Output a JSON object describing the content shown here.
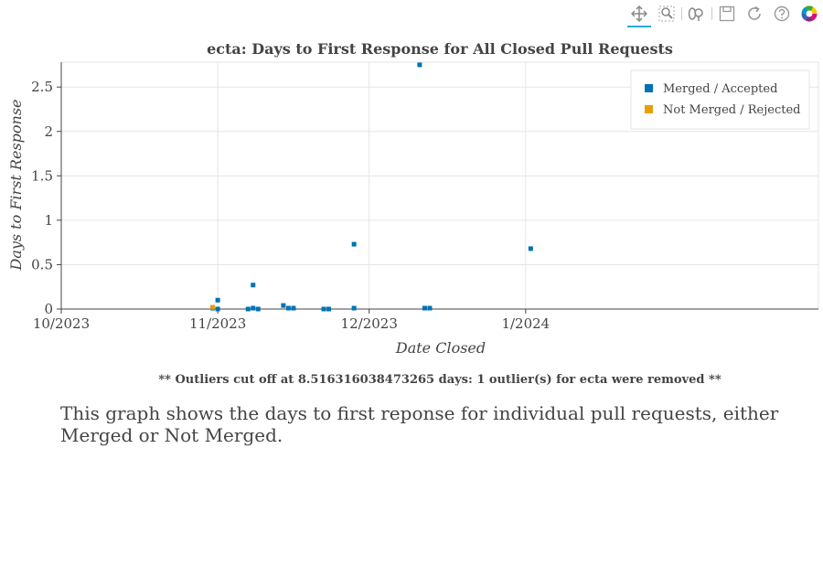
{
  "toolbar": {
    "tools": [
      {
        "name": "pan",
        "icon": "pan-icon"
      },
      {
        "name": "box-zoom",
        "icon": "box-zoom-icon"
      },
      {
        "name": "wheel-zoom",
        "icon": "wheel-zoom-icon"
      },
      {
        "name": "save",
        "icon": "save-icon"
      },
      {
        "name": "reset",
        "icon": "reset-icon"
      },
      {
        "name": "help",
        "icon": "help-icon"
      },
      {
        "name": "bokeh-logo",
        "icon": "bokeh-logo-icon"
      }
    ]
  },
  "chart_data": {
    "type": "scatter",
    "title": "ecta: Days to First Response for All Closed Pull Requests",
    "xlabel": "Date Closed",
    "ylabel": "Days to First Response",
    "xlim": [
      "2023-10-01",
      "2024-02-28"
    ],
    "ylim": [
      0,
      2.78
    ],
    "xticks": [
      {
        "value": "2023-10-01",
        "label": "10/2023"
      },
      {
        "value": "2023-11-01",
        "label": "11/2023"
      },
      {
        "value": "2023-12-01",
        "label": "12/2023"
      },
      {
        "value": "2024-01-01",
        "label": "1/2024"
      }
    ],
    "yticks": [
      {
        "value": 0,
        "label": "0"
      },
      {
        "value": 0.5,
        "label": "0.5"
      },
      {
        "value": 1,
        "label": "1"
      },
      {
        "value": 1.5,
        "label": "1.5"
      },
      {
        "value": 2,
        "label": "2"
      },
      {
        "value": 2.5,
        "label": "2.5"
      }
    ],
    "grid": true,
    "legend_position": "top-right",
    "series": [
      {
        "name": "Merged / Accepted",
        "color": "#0072b2",
        "points": [
          {
            "x": "2023-10-31",
            "y": 0.01
          },
          {
            "x": "2023-11-01",
            "y": 0.1
          },
          {
            "x": "2023-11-01",
            "y": 0.0
          },
          {
            "x": "2023-11-07",
            "y": 0.0
          },
          {
            "x": "2023-11-08",
            "y": 0.27
          },
          {
            "x": "2023-11-08",
            "y": 0.01
          },
          {
            "x": "2023-11-09",
            "y": 0.0
          },
          {
            "x": "2023-11-14",
            "y": 0.04
          },
          {
            "x": "2023-11-15",
            "y": 0.01
          },
          {
            "x": "2023-11-16",
            "y": 0.01
          },
          {
            "x": "2023-11-22",
            "y": 0.0
          },
          {
            "x": "2023-11-23",
            "y": 0.0
          },
          {
            "x": "2023-11-28",
            "y": 0.73
          },
          {
            "x": "2023-11-28",
            "y": 0.01
          },
          {
            "x": "2023-12-11",
            "y": 2.75
          },
          {
            "x": "2023-12-12",
            "y": 0.01
          },
          {
            "x": "2023-12-13",
            "y": 0.01
          },
          {
            "x": "2024-01-02",
            "y": 0.68
          }
        ]
      },
      {
        "name": "Not Merged / Rejected",
        "color": "#e69f00",
        "points": [
          {
            "x": "2023-10-31",
            "y": 0.02
          }
        ]
      }
    ]
  },
  "footnote": "** Outliers cut off at 8.516316038473265 days: 1 outlier(s) for ecta were removed **",
  "description": "This graph shows the days to first reponse for individual pull requests, either Merged or Not Merged."
}
